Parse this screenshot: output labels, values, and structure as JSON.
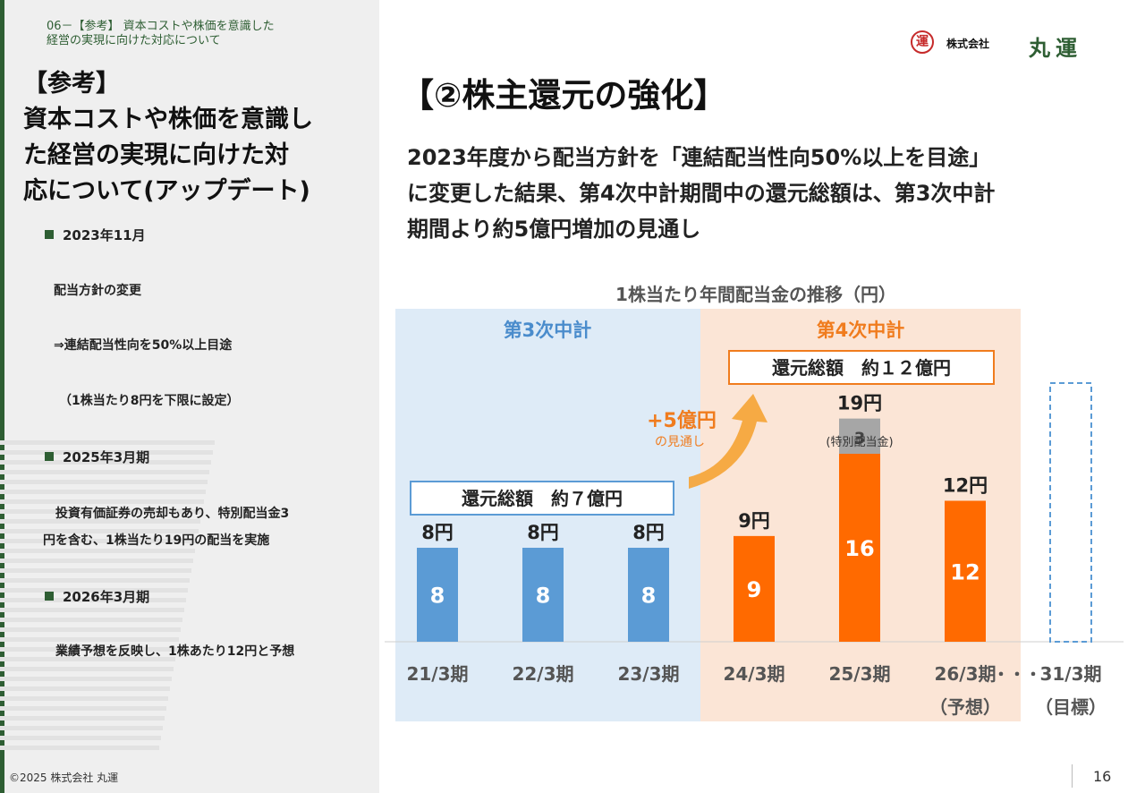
{
  "header": {
    "breadcrumb_line1": "06－【参考】 資本コストや株価を意識した",
    "breadcrumb_line2": "経営の実現に向けた対応について"
  },
  "left": {
    "title_line1": "【参考】",
    "title_line2": "資本コストや株価を意識し",
    "title_line3": "た経営の実現に向けた対",
    "title_line4": "応について(アップデート)",
    "sections": [
      {
        "heading": "2023年11月",
        "lines": [
          "配当方針の変更",
          "⇒連結配当性向を50%以上目途",
          "（1株当たり8円を下限に設定）"
        ]
      },
      {
        "heading": "2025年3月期",
        "lines": [
          "投資有価証券の売却もあり、特別配当金3",
          "円を含む、1株当たり19円の配当を実施"
        ]
      },
      {
        "heading": "2026年3月期",
        "lines": [
          "業績予想を反映し、1株あたり12円と予想"
        ]
      }
    ]
  },
  "main": {
    "title": "【②株主還元の強化】",
    "subtitle_line1": "2023年度から配当方針を「連結配当性向50%以上を目途」",
    "subtitle_line2": "に変更した結果、第4次中計期間中の還元総額は、第3次中計",
    "subtitle_line3": "期間より約5億円増加の見通し"
  },
  "logo": {
    "mark": "運",
    "prefix": "株式会社",
    "name": "丸運"
  },
  "footer": {
    "copyright": "©2025 株式会社 丸運",
    "page_number": "16"
  },
  "colors": {
    "blue": "#5b9bd5",
    "orange": "#ff6a00",
    "special": "#a6a6a6",
    "panel_blue": "#deebf7",
    "panel_orange": "#fbe5d6",
    "brand_green": "#2e5e33"
  },
  "chart_data": {
    "type": "bar",
    "title": "1株当たり年間配当金の推移（円）",
    "categories": [
      "21/3期",
      "22/3期",
      "23/3期",
      "24/3期",
      "25/3期",
      "26/3期",
      "31/3期"
    ],
    "category_sublabels": [
      "",
      "",
      "",
      "",
      "",
      "（予想）",
      "（目標）"
    ],
    "ellipsis": "・・・",
    "series": [
      {
        "name": "",
        "values": [
          8,
          8,
          8,
          9,
          16,
          12,
          null
        ]
      },
      {
        "name": "",
        "values": [
          null,
          null,
          null,
          null,
          3,
          null,
          null
        ]
      }
    ],
    "totals": [
      "8円",
      "8円",
      "8円",
      "9円",
      "19円",
      "12円",
      ""
    ],
    "special_label": "(特別配当金)",
    "target_placeholder": true,
    "groups": [
      {
        "label": "第3次中計",
        "range": [
          "21/3期",
          "23/3期"
        ],
        "summary": "還元総額　約７億円"
      },
      {
        "label": "第4次中計",
        "range": [
          "24/3期",
          "26/3期"
        ],
        "summary": "還元総額　約１２億円"
      }
    ],
    "annotation": {
      "text": "+5億円",
      "sub": "の見通し"
    },
    "ylim": [
      0,
      21
    ]
  }
}
